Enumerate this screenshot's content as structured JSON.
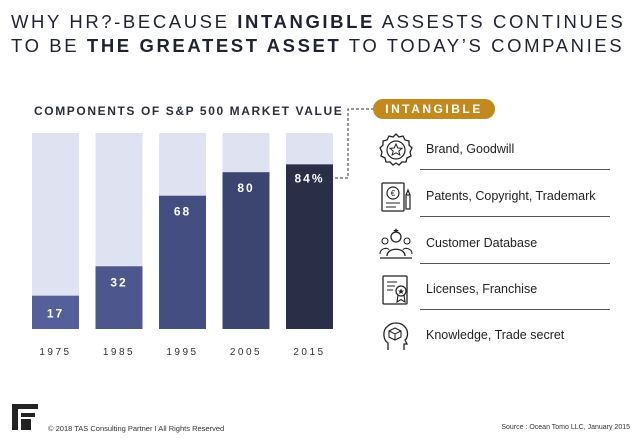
{
  "header": {
    "title_line1_a": "WHY HR?-BECAUSE ",
    "title_line1_b": "INTANGIBLE",
    "title_line1_c": " ASSESTS CONTINUES",
    "title_line2_a": "TO BE ",
    "title_line2_b": "THE GREATEST ASSET",
    "title_line2_c": " TO TODAY’S COMPANIES"
  },
  "chart_data": {
    "type": "bar",
    "title": "COMPONENTS OF S&P 500 MARKET VALUE",
    "categories": [
      "1975",
      "1985",
      "1995",
      "2005",
      "2015"
    ],
    "values": [
      17,
      32,
      68,
      80,
      84
    ],
    "value_labels": [
      "17",
      "32",
      "68",
      "80",
      "84%"
    ],
    "ylim": [
      0,
      100
    ],
    "stacked_remainder": true,
    "colors": {
      "background_bar": "#dfe2f0",
      "bars": [
        "#55609a",
        "#4d578d",
        "#454e80",
        "#3c4470",
        "#2a2f47"
      ]
    }
  },
  "intangible": {
    "badge": "INTANGIBLE",
    "items": [
      {
        "label": "Brand, Goodwill",
        "icon": "badge-star-icon"
      },
      {
        "label": "Patents, Copyright, Trademark",
        "icon": "certificate-icon"
      },
      {
        "label": "Customer Database",
        "icon": "customer-group-icon"
      },
      {
        "label": "Licenses, Franchise",
        "icon": "license-icon"
      },
      {
        "label": "Knowledge, Trade secret",
        "icon": "knowledge-icon"
      }
    ]
  },
  "footer": {
    "copyright": "© 2018 TAS Consulting Partner  I  All Rights Reserved",
    "source": "Source : Ocean Tomo LLC, January 2015"
  },
  "colors": {
    "accent": "#c28a1e",
    "title": "#1f2330"
  }
}
